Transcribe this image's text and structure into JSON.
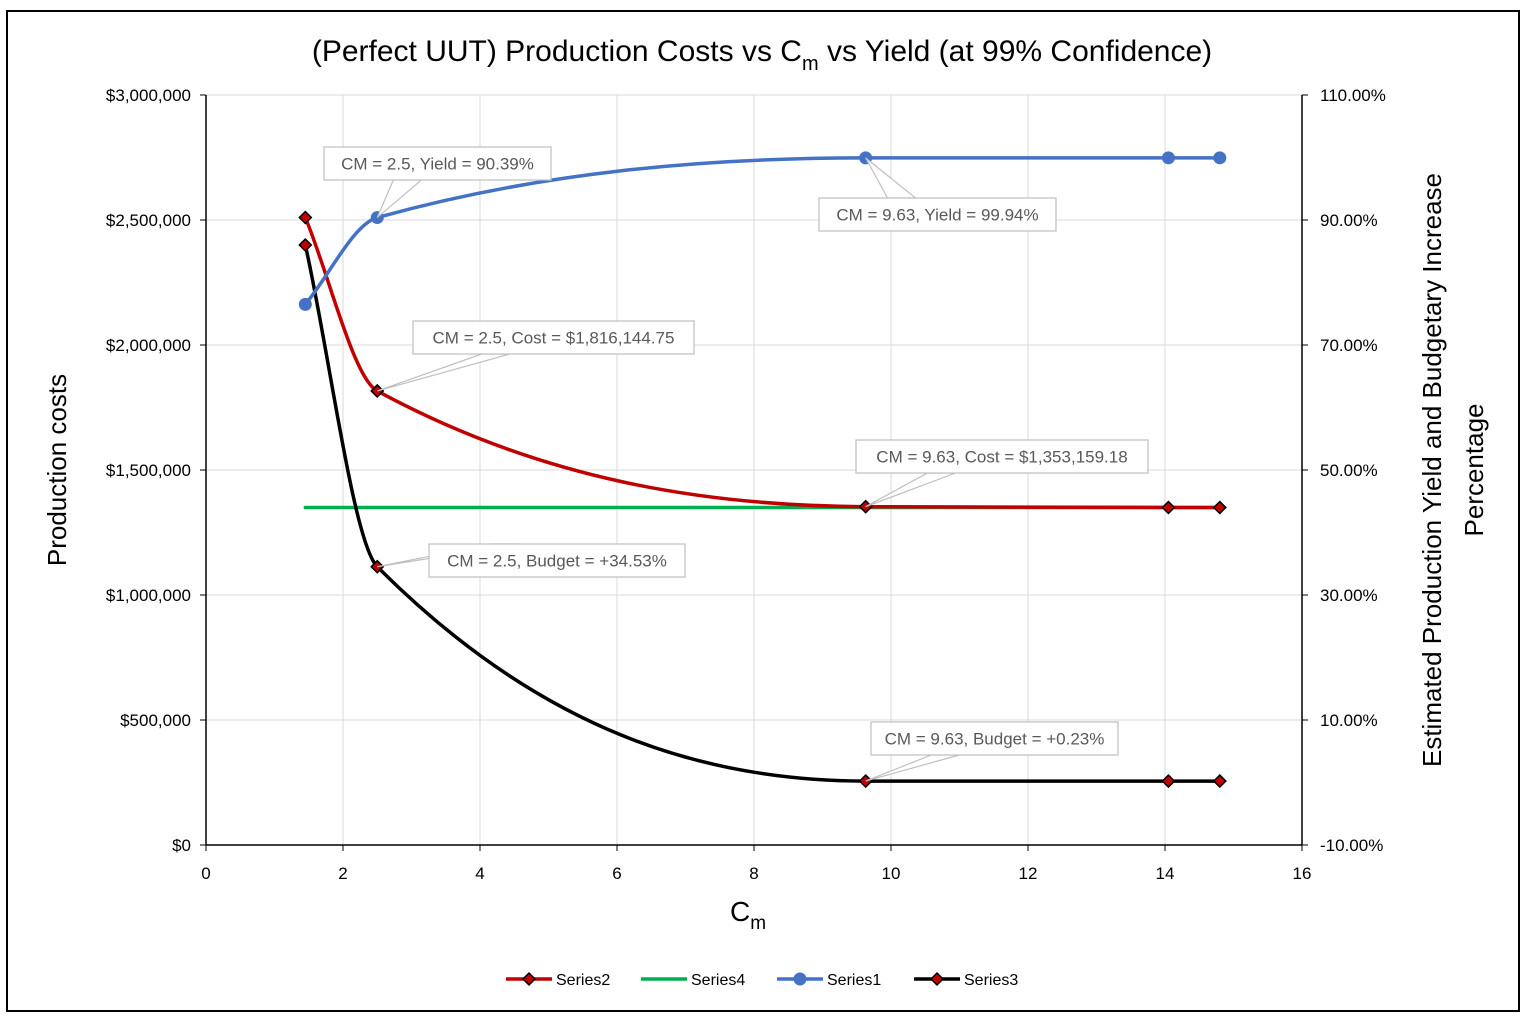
{
  "chart_data": {
    "type": "line",
    "title": "(Perfect UUT) Production Costs vs Cm vs Yield (at 99% Confidence)",
    "title_parts": {
      "before": "(Perfect UUT) Production Costs vs C",
      "sub": "m",
      "after": " vs Yield (at 99% Confidence)"
    },
    "xlabel": "Cm",
    "xlabel_parts": {
      "main": "C",
      "sub": "m"
    },
    "ylabel": "Production costs",
    "y2label_line1": "Estimated Production Yield and Budgetary Increase",
    "y2label_line2": "Percentage",
    "xlim": [
      0,
      16
    ],
    "ylim": [
      0,
      3000000
    ],
    "y2lim": [
      -10,
      110
    ],
    "x_ticks": [
      "0",
      "2",
      "4",
      "6",
      "8",
      "10",
      "12",
      "14",
      "16"
    ],
    "y_ticks": [
      "$0",
      "$500,000",
      "$1,000,000",
      "$1,500,000",
      "$2,000,000",
      "$2,500,000",
      "$3,000,000"
    ],
    "y2_ticks": [
      "-10.00%",
      "10.00%",
      "30.00%",
      "50.00%",
      "70.00%",
      "90.00%",
      "110.00%"
    ],
    "grid": true,
    "legend_position": "bottom",
    "series": [
      {
        "name": "Series2",
        "axis": "left",
        "color": "#c00000",
        "marker": "diamond",
        "marker_fill": "#c00000",
        "x": [
          1.45,
          2.5,
          9.63,
          14.05,
          14.8
        ],
        "y": [
          2510000,
          1816144.75,
          1353159.18,
          1350000,
          1350000
        ]
      },
      {
        "name": "Series4",
        "axis": "left",
        "color": "#00b050",
        "marker": "none",
        "x": [
          1.45,
          14.8
        ],
        "y": [
          1350000,
          1350000
        ]
      },
      {
        "name": "Series1",
        "axis": "right",
        "color": "#4472c4",
        "marker": "circle",
        "marker_fill": "#4472c4",
        "x": [
          1.45,
          2.5,
          9.63,
          14.05,
          14.8
        ],
        "y": [
          76.5,
          90.39,
          99.94,
          99.95,
          99.95
        ]
      },
      {
        "name": "Series3",
        "axis": "right",
        "color": "#000000",
        "marker": "diamond",
        "marker_fill": "#c00000",
        "x": [
          1.45,
          2.5,
          9.63,
          14.05,
          14.8
        ],
        "y": [
          86.0,
          34.53,
          0.23,
          0.23,
          0.23
        ]
      }
    ],
    "annotations": [
      {
        "text": "CM = 2.5, Yield = 90.39%",
        "series": "Series1",
        "x": 2.5,
        "y": 90.39
      },
      {
        "text": "CM = 9.63, Yield = 99.94%",
        "series": "Series1",
        "x": 9.63,
        "y": 99.94
      },
      {
        "text": "CM = 2.5, Cost = $1,816,144.75",
        "series": "Series2",
        "x": 2.5,
        "y": 1816144.75
      },
      {
        "text": "CM = 9.63, Cost = $1,353,159.18",
        "series": "Series2",
        "x": 9.63,
        "y": 1353159.18
      },
      {
        "text": "CM = 2.5, Budget = +34.53%",
        "series": "Series3",
        "x": 2.5,
        "y": 34.53
      },
      {
        "text": "CM = 9.63, Budget = +0.23%",
        "series": "Series3",
        "x": 9.63,
        "y": 0.23
      }
    ],
    "legend": [
      "Series2",
      "Series4",
      "Series1",
      "Series3"
    ]
  }
}
